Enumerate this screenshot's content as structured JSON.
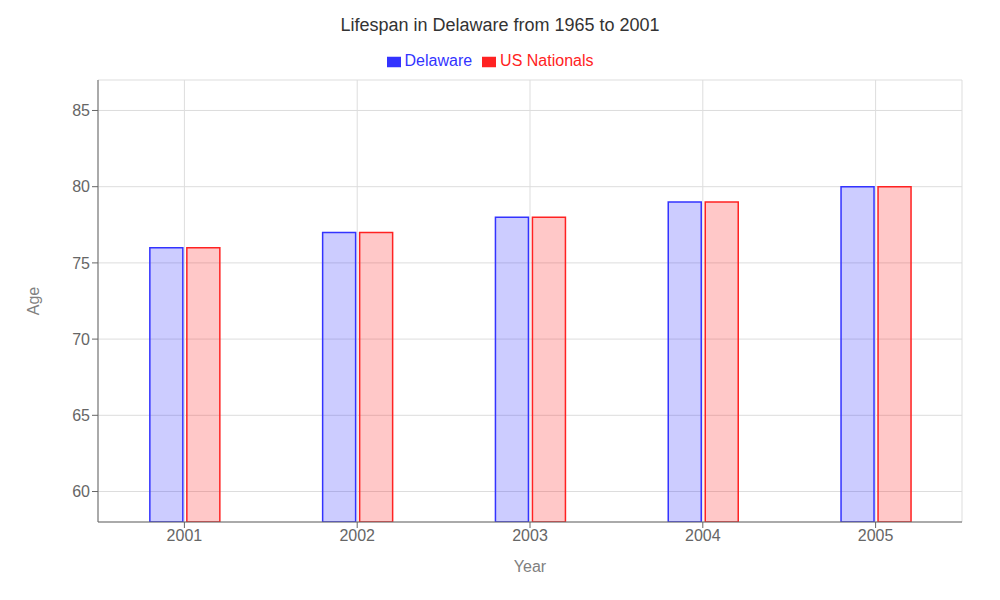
{
  "chart_data": {
    "type": "bar",
    "title": "Lifespan in Delaware from 1965 to 2001",
    "xlabel": "Year",
    "ylabel": "Age",
    "categories": [
      "2001",
      "2002",
      "2003",
      "2004",
      "2005"
    ],
    "series": [
      {
        "name": "Delaware",
        "color": "#3333ff",
        "values": [
          76,
          77,
          78,
          79,
          80
        ]
      },
      {
        "name": "US Nationals",
        "color": "#ff2222",
        "values": [
          76,
          77,
          78,
          79,
          80
        ]
      }
    ],
    "ylim": [
      58,
      87
    ],
    "yticks": [
      60,
      65,
      70,
      75,
      80,
      85
    ],
    "grid": true,
    "legend": "top"
  }
}
